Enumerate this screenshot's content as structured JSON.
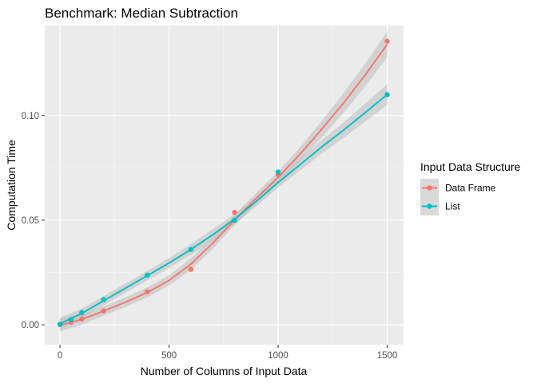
{
  "chart_data": {
    "type": "line",
    "title": "Benchmark: Median Subtraction",
    "xlabel": "Number of Columns of Input Data",
    "ylabel": "Computation Time",
    "xlim": [
      -70,
      1575
    ],
    "ylim": [
      -0.0095,
      0.143
    ],
    "x_ticks": [
      0,
      500,
      1000,
      1500
    ],
    "y_ticks": [
      0.0,
      0.05,
      0.1
    ],
    "x_tick_labels": [
      "0",
      "500",
      "1000",
      "1500"
    ],
    "y_tick_labels": [
      "0.00",
      "0.05",
      "0.10"
    ],
    "grid": true,
    "legend": {
      "title": "Input Data Structure",
      "position": "right"
    },
    "series": [
      {
        "name": "Data Frame",
        "color": "#f8766d",
        "points": [
          [
            0,
            0.0002
          ],
          [
            50,
            0.0012
          ],
          [
            100,
            0.0028
          ],
          [
            200,
            0.0067
          ],
          [
            400,
            0.0158
          ],
          [
            600,
            0.0265
          ],
          [
            800,
            0.0537
          ],
          [
            1000,
            0.0718
          ],
          [
            1500,
            0.1355
          ]
        ],
        "smooth": [
          [
            0,
            -0.0002
          ],
          [
            100,
            0.0026
          ],
          [
            200,
            0.0066
          ],
          [
            300,
            0.0108
          ],
          [
            400,
            0.0155
          ],
          [
            500,
            0.0212
          ],
          [
            600,
            0.029
          ],
          [
            700,
            0.039
          ],
          [
            800,
            0.05
          ],
          [
            900,
            0.0605
          ],
          [
            1000,
            0.0705
          ],
          [
            1100,
            0.0815
          ],
          [
            1200,
            0.0935
          ],
          [
            1300,
            0.106
          ],
          [
            1400,
            0.1195
          ],
          [
            1500,
            0.134
          ]
        ],
        "ci": [
          0.003,
          0.0025,
          0.0022,
          0.0023,
          0.0024,
          0.0025,
          0.0028,
          0.0028,
          0.0025,
          0.0025,
          0.0027,
          0.0033,
          0.004,
          0.0047,
          0.0055,
          0.0062
        ]
      },
      {
        "name": "List",
        "color": "#00bfc4",
        "points": [
          [
            0,
            0.0002
          ],
          [
            50,
            0.0025
          ],
          [
            100,
            0.0058
          ],
          [
            200,
            0.012
          ],
          [
            400,
            0.0237
          ],
          [
            600,
            0.036
          ],
          [
            800,
            0.05
          ],
          [
            1000,
            0.073
          ],
          [
            1500,
            0.11
          ]
        ],
        "smooth": [
          [
            0,
            0.0005
          ],
          [
            100,
            0.0055
          ],
          [
            200,
            0.0115
          ],
          [
            300,
            0.0175
          ],
          [
            400,
            0.0235
          ],
          [
            500,
            0.0295
          ],
          [
            600,
            0.036
          ],
          [
            700,
            0.043
          ],
          [
            800,
            0.0505
          ],
          [
            900,
            0.059
          ],
          [
            1000,
            0.068
          ],
          [
            1100,
            0.0765
          ],
          [
            1200,
            0.085
          ],
          [
            1300,
            0.093
          ],
          [
            1400,
            0.1015
          ],
          [
            1500,
            0.11
          ]
        ],
        "ci": [
          0.0028,
          0.0024,
          0.0022,
          0.0022,
          0.0023,
          0.0024,
          0.0026,
          0.0027,
          0.0025,
          0.0024,
          0.0025,
          0.0028,
          0.0032,
          0.0037,
          0.0043,
          0.005
        ]
      }
    ]
  },
  "colors": {
    "panel_background": "#ebebeb",
    "major_grid": "#ffffff",
    "ci_band": "#bdbdbd",
    "legend_key_background": "#d9d9d9"
  }
}
